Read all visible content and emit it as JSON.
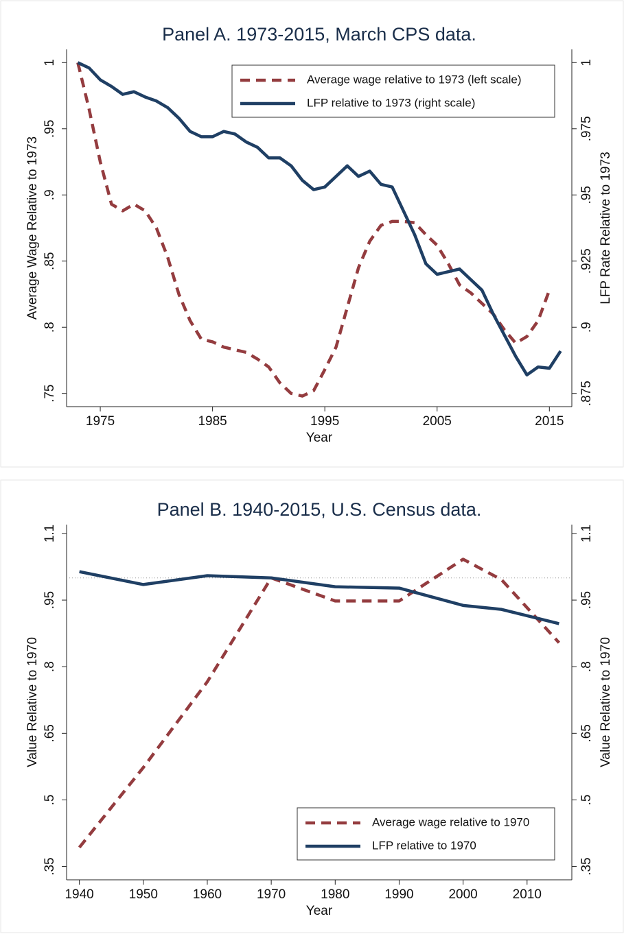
{
  "chart_data": [
    {
      "type": "line",
      "title": "Panel A. 1973-2015, March CPS data.",
      "xlabel": "Year",
      "ylabel": "Average Wage Relative to 1973",
      "y2label": "LFP Rate Relative to 1973",
      "x": [
        1973,
        1974,
        1975,
        1976,
        1977,
        1978,
        1979,
        1980,
        1981,
        1982,
        1983,
        1984,
        1985,
        1986,
        1987,
        1988,
        1989,
        1990,
        1991,
        1992,
        1993,
        1994,
        1995,
        1996,
        1997,
        1998,
        1999,
        2000,
        2001,
        2002,
        2003,
        2004,
        2005,
        2006,
        2007,
        2008,
        2009,
        2010,
        2011,
        2012,
        2013,
        2014,
        2015,
        2016
      ],
      "series": [
        {
          "name": "Average wage relative to 1973 (left scale)",
          "color": "#943c3f",
          "dash": true,
          "values": [
            1.0,
            0.965,
            0.925,
            0.893,
            0.888,
            0.893,
            0.888,
            0.875,
            0.853,
            0.825,
            0.805,
            0.791,
            0.789,
            0.785,
            0.783,
            0.781,
            0.776,
            0.77,
            0.758,
            0.75,
            0.748,
            0.752,
            0.768,
            0.785,
            0.815,
            0.845,
            0.865,
            0.877,
            0.88,
            0.88,
            0.879,
            0.87,
            0.862,
            0.848,
            0.832,
            0.826,
            0.818,
            0.81,
            0.798,
            0.788,
            0.793,
            0.805,
            0.828,
            null
          ]
        },
        {
          "name": "LFP relative to 1973 (right scale)",
          "color": "#1f3f64",
          "dash": false,
          "axis": "y2",
          "values": [
            1.0,
            0.998,
            0.9935,
            0.991,
            0.988,
            0.989,
            0.987,
            0.9855,
            0.983,
            0.979,
            0.974,
            0.972,
            0.972,
            0.974,
            0.973,
            0.97,
            0.968,
            0.964,
            0.964,
            0.961,
            0.9555,
            0.952,
            0.953,
            0.957,
            0.961,
            0.957,
            0.959,
            0.954,
            0.953,
            0.944,
            0.935,
            0.924,
            0.92,
            0.921,
            0.922,
            0.918,
            0.914,
            0.905,
            0.897,
            0.889,
            0.882,
            0.885,
            0.8845,
            0.891
          ]
        }
      ],
      "xlim": [
        1972,
        2017
      ],
      "xticks": [
        1975,
        1985,
        1995,
        2005,
        2015
      ],
      "ylim": [
        0.74,
        1.01
      ],
      "yticks": [
        {
          "value": 0.75,
          "label": ".75"
        },
        {
          "value": 0.8,
          "label": ".8"
        },
        {
          "value": 0.85,
          "label": ".85"
        },
        {
          "value": 0.9,
          "label": ".9"
        },
        {
          "value": 0.95,
          "label": ".95"
        },
        1
      ],
      "y2lim": [
        0.87,
        1.005
      ],
      "y2ticks": [
        {
          "value": 0.875,
          "label": ".875"
        },
        {
          "value": 0.9,
          "label": ".9"
        },
        {
          "value": 0.925,
          "label": ".925"
        },
        {
          "value": 0.95,
          "label": ".95"
        },
        {
          "value": 0.975,
          "label": ".975"
        },
        1
      ],
      "legend": "upper right"
    },
    {
      "type": "line",
      "title": "Panel B. 1940-2015, U.S. Census data.",
      "xlabel": "Year",
      "ylabel": "Value Relative to 1970",
      "y2label": "Value Relative to 1970",
      "x": [
        1940,
        1950,
        1960,
        1970,
        1980,
        1990,
        2000,
        2006,
        2015
      ],
      "series": [
        {
          "name": "Average wage relative to 1970",
          "color": "#943c3f",
          "dash": true,
          "values": [
            0.393,
            0.573,
            0.766,
            1.0,
            0.948,
            0.948,
            1.042,
            0.996,
            0.854
          ]
        },
        {
          "name": "LFP relative to 1970",
          "color": "#1f3f64",
          "dash": false,
          "values": [
            1.014,
            0.985,
            1.005,
            1.0,
            0.98,
            0.977,
            0.938,
            0.929,
            0.897
          ]
        }
      ],
      "xlim": [
        1938,
        2017
      ],
      "xticks": [
        1940,
        1950,
        1960,
        1970,
        1980,
        1990,
        2000,
        2010
      ],
      "ylim": [
        0.32,
        1.12
      ],
      "yticks": [
        {
          "value": 0.35,
          "label": ".35"
        },
        {
          "value": 0.5,
          "label": ".5"
        },
        {
          "value": 0.65,
          "label": ".65"
        },
        {
          "value": 0.8,
          "label": ".8"
        },
        {
          "value": 0.95,
          "label": ".95"
        },
        1.1
      ],
      "y2lim": [
        0.32,
        1.12
      ],
      "y2ticks": [
        {
          "value": 0.35,
          "label": ".35"
        },
        {
          "value": 0.5,
          "label": ".5"
        },
        {
          "value": 0.65,
          "label": ".65"
        },
        {
          "value": 0.8,
          "label": ".8"
        },
        {
          "value": 0.95,
          "label": ".95"
        },
        1.1
      ],
      "hline": 1,
      "legend": "lower right"
    }
  ]
}
